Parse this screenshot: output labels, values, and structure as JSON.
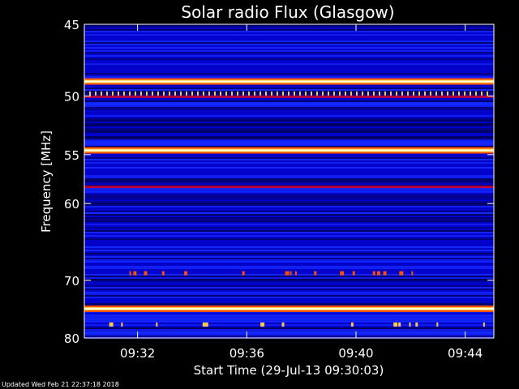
{
  "chart_data": {
    "type": "heatmap",
    "title": "Solar radio Flux (Glasgow)",
    "xlabel": "Start Time (29-Jul-13 09:30:03)",
    "ylabel": "Frequency [MHz]",
    "x_ticks": [
      "09:32",
      "09:36",
      "09:40",
      "09:44"
    ],
    "y_ticks": [
      "45",
      "50",
      "55",
      "60",
      "70",
      "80"
    ],
    "y_scale": "reciprocal",
    "xlim": [
      "09:30:03",
      "09:45:03"
    ],
    "ylim": [
      45,
      80
    ],
    "colormap": [
      "#000060",
      "#0000c8",
      "#1428ff",
      "#b4003c",
      "#ff5000",
      "#ffc846",
      "#ffffdc"
    ],
    "bands": [
      {
        "freq": 48.9,
        "level": "saturated"
      },
      {
        "freq": 49.9,
        "level": "pulsed"
      },
      {
        "freq": 54.6,
        "level": "saturated"
      },
      {
        "freq": 58.2,
        "level": "moderate"
      },
      {
        "freq": 74.6,
        "level": "saturated"
      },
      {
        "freq": 78.8,
        "level": "weak"
      }
    ],
    "grid": false,
    "legend": "none"
  },
  "footer": "Updated Wed Feb 21 22:37:18 2018"
}
